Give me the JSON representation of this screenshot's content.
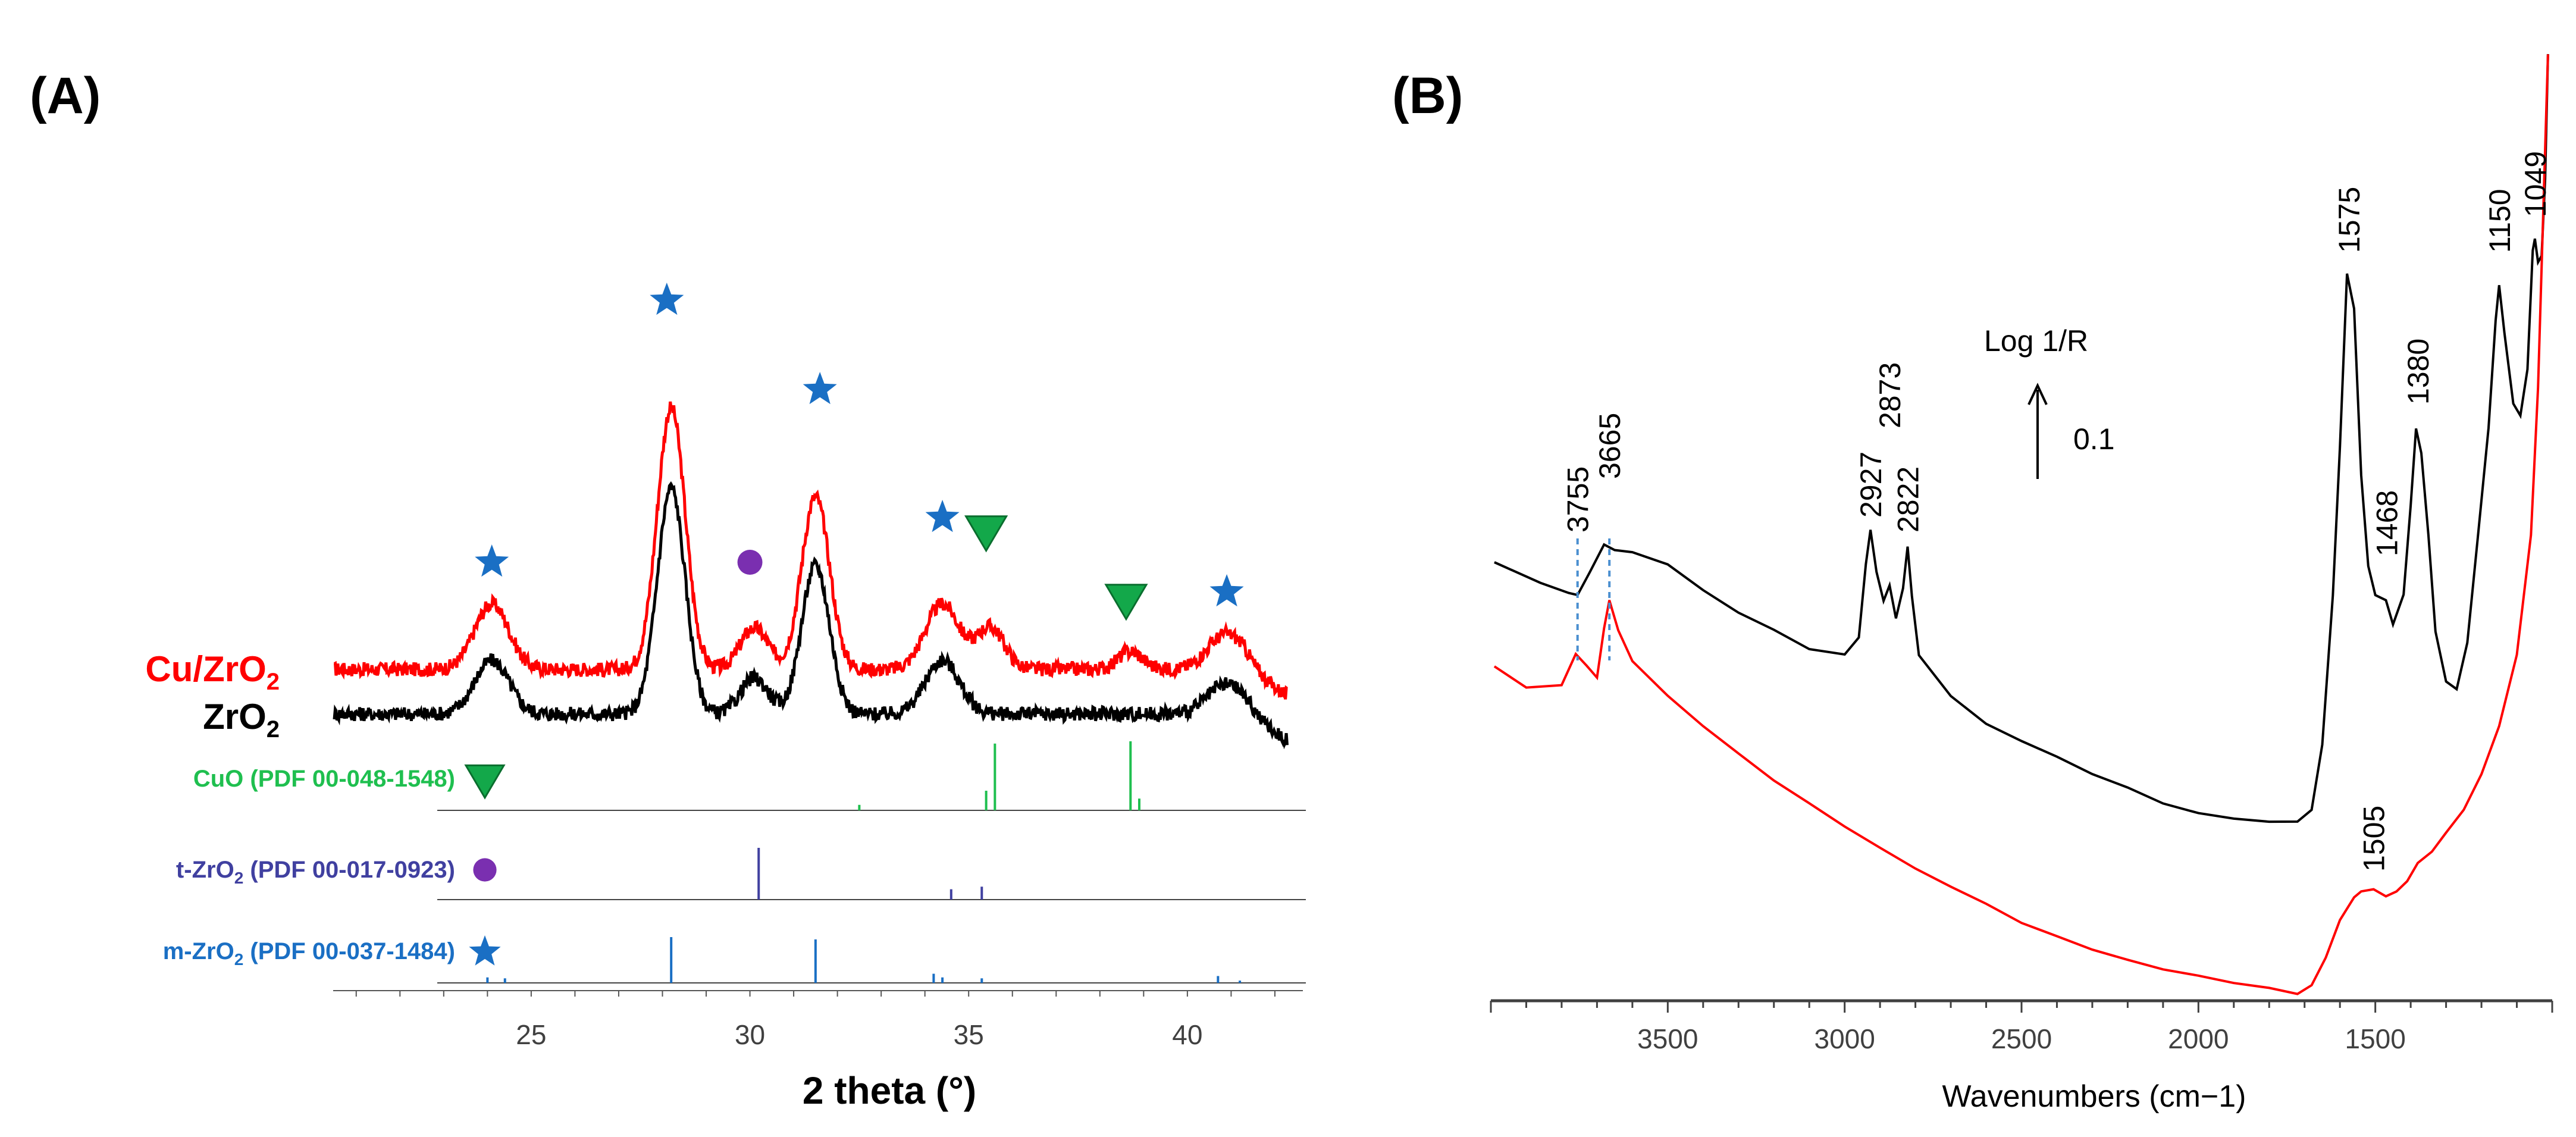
{
  "chart_data": [
    {
      "panel": "(A)",
      "type": "line",
      "xlabel": "2 theta (°)",
      "xlim": [
        20.5,
        42.3
      ],
      "xticks": [
        25,
        30,
        35,
        40
      ],
      "ylabel": "",
      "series": [
        {
          "name_parts": [
            "Cu/ZrO",
            "2"
          ],
          "color": "#ff0000",
          "peaks": [
            {
              "x": 24.1,
              "h": 0.55,
              "w": 0.55
            },
            {
              "x": 28.2,
              "h": 2.2,
              "w": 0.45
            },
            {
              "x": 30.1,
              "h": 0.35,
              "w": 0.45
            },
            {
              "x": 31.5,
              "h": 1.45,
              "w": 0.45
            },
            {
              "x": 34.4,
              "h": 0.55,
              "w": 0.55
            },
            {
              "x": 35.5,
              "h": 0.35,
              "w": 0.45
            },
            {
              "x": 38.7,
              "h": 0.15,
              "w": 0.4
            },
            {
              "x": 40.9,
              "h": 0.3,
              "w": 0.6
            }
          ]
        },
        {
          "name_parts": [
            "ZrO",
            "2"
          ],
          "color": "#000000",
          "peaks": [
            {
              "x": 24.1,
              "h": 0.45,
              "w": 0.55
            },
            {
              "x": 28.2,
              "h": 1.9,
              "w": 0.45
            },
            {
              "x": 30.1,
              "h": 0.3,
              "w": 0.45
            },
            {
              "x": 31.5,
              "h": 1.25,
              "w": 0.45
            },
            {
              "x": 34.4,
              "h": 0.45,
              "w": 0.55
            },
            {
              "x": 40.9,
              "h": 0.25,
              "w": 0.6
            }
          ]
        }
      ],
      "references": [
        {
          "label_parts": [
            "CuO (PDF 00-048-1548)"
          ],
          "color": "#1fbf4f",
          "marker": "triangle",
          "lines": [
            {
              "x": 32.5,
              "i": 0.07
            },
            {
              "x": 35.4,
              "i": 0.25
            },
            {
              "x": 35.6,
              "i": 0.85
            },
            {
              "x": 38.7,
              "i": 0.88
            },
            {
              "x": 38.9,
              "i": 0.15
            }
          ]
        },
        {
          "label_parts": [
            "t-ZrO",
            "2",
            " (PDF 00-017-0923)"
          ],
          "color": "#4040a0",
          "marker": "circle",
          "lines": [
            {
              "x": 30.2,
              "i": 1.0
            },
            {
              "x": 34.6,
              "i": 0.2
            },
            {
              "x": 35.3,
              "i": 0.25
            }
          ]
        },
        {
          "label_parts": [
            "m-ZrO",
            "2",
            " (PDF 00-037-1484)"
          ],
          "color": "#1a6fc4",
          "marker": "star",
          "lines": [
            {
              "x": 24.0,
              "i": 0.12
            },
            {
              "x": 24.4,
              "i": 0.1
            },
            {
              "x": 28.2,
              "i": 1.0
            },
            {
              "x": 31.5,
              "i": 0.95
            },
            {
              "x": 34.2,
              "i": 0.2
            },
            {
              "x": 34.4,
              "i": 0.12
            },
            {
              "x": 35.3,
              "i": 0.1
            },
            {
              "x": 40.7,
              "i": 0.15
            },
            {
              "x": 41.2,
              "i": 0.05
            }
          ]
        }
      ],
      "phase_markers": [
        {
          "x": 24.1,
          "type": "star"
        },
        {
          "x": 28.1,
          "type": "star"
        },
        {
          "x": 31.6,
          "type": "star"
        },
        {
          "x": 34.4,
          "type": "star"
        },
        {
          "x": 35.4,
          "type": "triangle"
        },
        {
          "x": 30.0,
          "type": "circle"
        },
        {
          "x": 38.6,
          "type": "triangle"
        },
        {
          "x": 40.9,
          "type": "star"
        }
      ]
    },
    {
      "panel": "(B)",
      "type": "line",
      "xlabel": "Wavenumbers (cm−1)",
      "xlim": [
        4000,
        1000
      ],
      "xticks": [
        3500,
        3000,
        2500,
        2000,
        1500
      ],
      "ylabel": "Log 1/R",
      "scale_bar_label": "0.1",
      "series": [
        {
          "name": "black spectrum",
          "color": "#000000"
        },
        {
          "name": "red spectrum",
          "color": "#ff0000"
        }
      ],
      "peak_labels": [
        {
          "text": "3755",
          "x": 3755
        },
        {
          "text": "3665",
          "x": 3665
        },
        {
          "text": "2927",
          "x": 2927
        },
        {
          "text": "2873",
          "x": 2873
        },
        {
          "text": "2822",
          "x": 2822
        },
        {
          "text": "1575",
          "x": 1575
        },
        {
          "text": "1468",
          "x": 1468
        },
        {
          "text": "1380",
          "x": 1380
        },
        {
          "text": "1150",
          "x": 1150
        },
        {
          "text": "1049",
          "x": 1049
        },
        {
          "text": "1505",
          "x": 1505
        }
      ]
    }
  ]
}
